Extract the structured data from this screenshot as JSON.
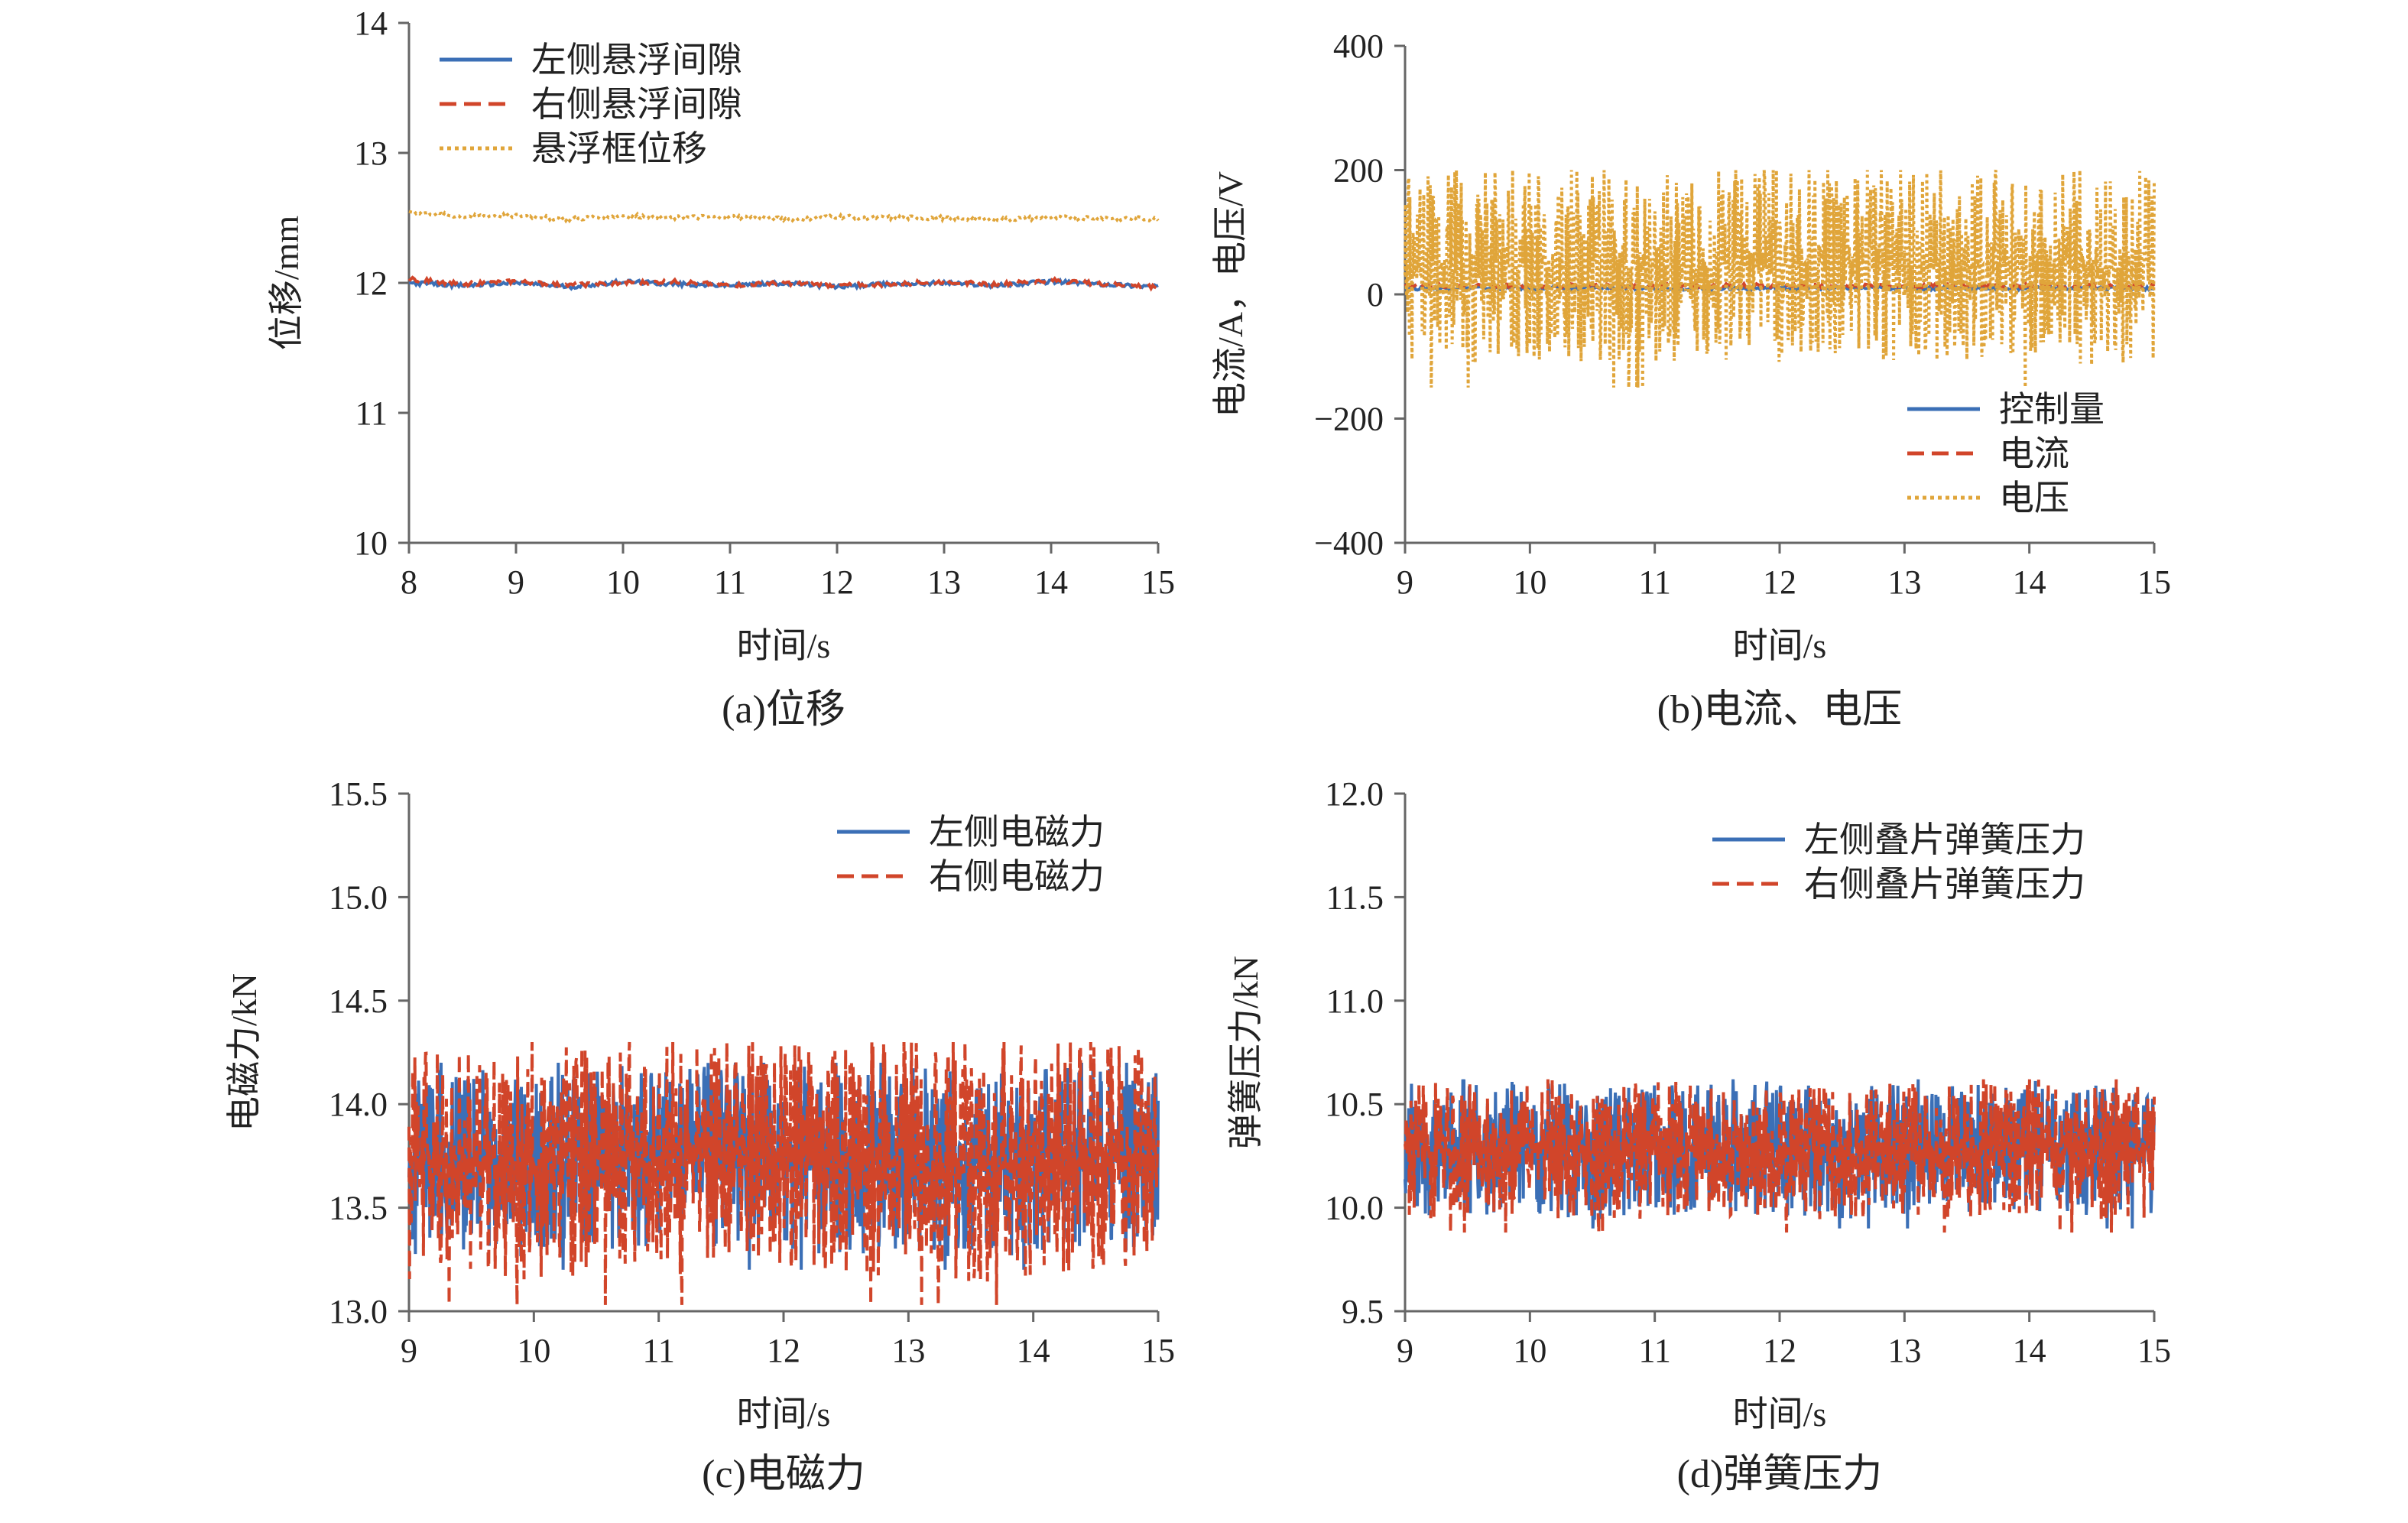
{
  "chart_data": [
    {
      "type": "line",
      "caption": "(a)位移",
      "xlabel": "时间/s",
      "ylabel": "位移/mm",
      "xlim": [
        8,
        15
      ],
      "ylim": [
        10,
        14
      ],
      "xticks": [
        8,
        9,
        10,
        11,
        12,
        13,
        14,
        15
      ],
      "yticks": [
        10,
        11,
        12,
        13,
        14
      ],
      "legend_position": "top-left",
      "series": [
        {
          "name": "左侧悬浮间隙",
          "color": "#3b6fb6",
          "style": "solid",
          "x": [
            8,
            8.5,
            9,
            9.5,
            10,
            10.5,
            11,
            11.5,
            12,
            12.5,
            13,
            13.5,
            14,
            14.5,
            15
          ],
          "y": [
            12.0,
            11.98,
            12.0,
            11.97,
            12.01,
            11.99,
            11.98,
            12.0,
            11.97,
            11.99,
            12.0,
            11.98,
            12.01,
            11.99,
            11.97
          ]
        },
        {
          "name": "右侧悬浮间隙",
          "color": "#d1452a",
          "style": "dashed",
          "x": [
            8,
            8.5,
            9,
            9.5,
            10,
            10.5,
            11,
            11.5,
            12,
            12.5,
            13,
            13.5,
            14,
            14.5,
            15
          ],
          "y": [
            12.03,
            11.99,
            12.01,
            11.98,
            12.0,
            12.01,
            11.98,
            12.0,
            11.98,
            11.99,
            12.01,
            11.99,
            12.02,
            11.99,
            11.97
          ]
        },
        {
          "name": "悬浮框位移",
          "color": "#e0a53a",
          "style": "dotted",
          "x": [
            8,
            8.5,
            9,
            9.5,
            10,
            10.5,
            11,
            11.5,
            12,
            12.5,
            13,
            13.5,
            14,
            14.5,
            15
          ],
          "y": [
            12.55,
            12.51,
            12.52,
            12.49,
            12.52,
            12.5,
            12.51,
            12.49,
            12.51,
            12.5,
            12.5,
            12.49,
            12.5,
            12.5,
            12.49
          ]
        }
      ]
    },
    {
      "type": "line",
      "caption": "(b)电流、电压",
      "xlabel": "时间/s",
      "ylabel": "电流/A，电压/V",
      "xlim": [
        9,
        15
      ],
      "ylim": [
        -400,
        400
      ],
      "xticks": [
        9,
        10,
        11,
        12,
        13,
        14,
        15
      ],
      "yticks": [
        -400,
        -200,
        0,
        200,
        400
      ],
      "legend_position": "bottom-right",
      "series": [
        {
          "name": "控制量",
          "color": "#3b6fb6",
          "style": "solid",
          "x": [
            9,
            10,
            11,
            12,
            13,
            14,
            15
          ],
          "y": [
            10,
            10,
            10,
            10,
            10,
            10,
            10
          ]
        },
        {
          "name": "电流",
          "color": "#d1452a",
          "style": "dashed",
          "x": [
            9,
            10,
            11,
            12,
            13,
            14,
            15
          ],
          "y": [
            14,
            14,
            14,
            14,
            14,
            14,
            14
          ]
        },
        {
          "name": "电压",
          "color": "#e0a53a",
          "style": "dotted",
          "x": [
            9,
            9.5,
            10,
            10.5,
            11,
            11.5,
            12,
            12.5,
            13,
            13.5,
            14,
            14.5,
            15
          ],
          "y": [
            40,
            45,
            42,
            50,
            44,
            48,
            46,
            52,
            45,
            47,
            49,
            44,
            43
          ],
          "band_low": -150,
          "band_high": 200
        }
      ]
    },
    {
      "type": "line",
      "caption": "(c)电磁力",
      "xlabel": "时间/s",
      "ylabel": "电磁力/kN",
      "xlim": [
        9,
        15
      ],
      "ylim": [
        13.0,
        15.5
      ],
      "xticks": [
        9,
        10,
        11,
        12,
        13,
        14,
        15
      ],
      "yticks": [
        "13.0",
        "13.5",
        "14.0",
        "14.5",
        "15.0",
        "15.5"
      ],
      "legend_position": "top-right",
      "series": [
        {
          "name": "左侧电磁力",
          "color": "#3b6fb6",
          "style": "solid",
          "x": [
            9,
            9.5,
            10,
            10.5,
            11,
            11.5,
            12,
            12.5,
            13,
            13.5,
            14,
            14.5,
            15
          ],
          "y": [
            13.72,
            13.74,
            13.7,
            13.75,
            13.73,
            13.76,
            13.74,
            13.72,
            13.74,
            13.7,
            13.73,
            13.75,
            13.72
          ],
          "band_low": 13.2,
          "band_high": 14.2
        },
        {
          "name": "右侧电磁力",
          "color": "#d1452a",
          "style": "dashed",
          "x": [
            9,
            9.5,
            10,
            10.5,
            11,
            11.5,
            12,
            12.5,
            13,
            13.5,
            14,
            14.5,
            15
          ],
          "y": [
            13.72,
            13.74,
            13.7,
            13.75,
            13.73,
            13.76,
            13.74,
            13.72,
            13.74,
            13.7,
            13.73,
            13.75,
            13.72
          ],
          "band_low": 13.03,
          "band_high": 14.3
        }
      ]
    },
    {
      "type": "line",
      "caption": "(d)弹簧压力",
      "xlabel": "时间/s",
      "ylabel": "弹簧压力/kN",
      "xlim": [
        9,
        15
      ],
      "ylim": [
        9.5,
        12.0
      ],
      "xticks": [
        9,
        10,
        11,
        12,
        13,
        14,
        15
      ],
      "yticks": [
        "9.5",
        "10.0",
        "10.5",
        "11.0",
        "11.5",
        "12.0"
      ],
      "legend_position": "top-right",
      "series": [
        {
          "name": "左侧叠片弹簧压力",
          "color": "#3b6fb6",
          "style": "solid",
          "x": [
            9,
            9.5,
            10,
            10.5,
            11,
            11.5,
            12,
            12.5,
            13,
            13.5,
            14,
            14.5,
            15
          ],
          "y": [
            10.28,
            10.27,
            10.3,
            10.26,
            10.28,
            10.27,
            10.29,
            10.26,
            10.28,
            10.27,
            10.3,
            10.27,
            10.28
          ],
          "band_low": 9.9,
          "band_high": 10.62
        },
        {
          "name": "右侧叠片弹簧压力",
          "color": "#d1452a",
          "style": "dashed",
          "x": [
            9,
            9.5,
            10,
            10.5,
            11,
            11.5,
            12,
            12.5,
            13,
            13.5,
            14,
            14.5,
            15
          ],
          "y": [
            10.28,
            10.27,
            10.3,
            10.26,
            10.28,
            10.27,
            10.29,
            10.26,
            10.28,
            10.27,
            10.3,
            10.27,
            10.28
          ],
          "band_low": 9.88,
          "band_high": 10.62
        }
      ]
    }
  ]
}
